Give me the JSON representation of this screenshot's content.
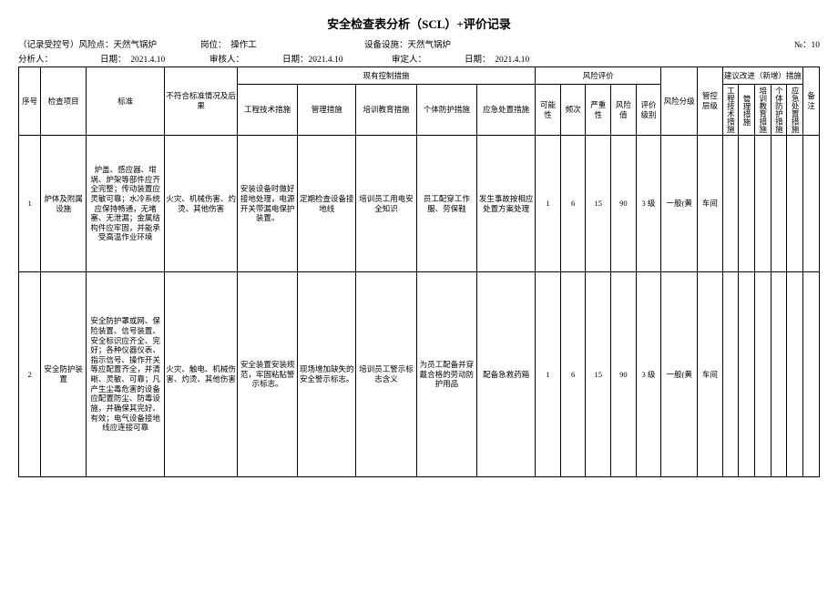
{
  "title": "安全检查表分析（SCL）+评价记录",
  "meta": {
    "record_no_label": "（记录受控号）风险点：",
    "record_no_value": "天然气锅炉",
    "post_label": "岗位：",
    "post_value": "操作工",
    "equip_label": "设备设施：",
    "equip_value": "天然气锅炉",
    "no_label": "№：",
    "no_value": "10",
    "analyst_label": "分析人：",
    "analyst_date_label": "日期：",
    "analyst_date": "2021.4.10",
    "reviewer_label": "审核人：",
    "reviewer_date_label": "日期：",
    "reviewer_date": "2021.4.10",
    "approver_label": "审定人：",
    "approver_date_label": "日期：",
    "approver_date": "2021.4.10"
  },
  "headers": {
    "seq": "序号",
    "item": "检查项目",
    "standard": "标准",
    "nonconf": "不符合标准情况及后果",
    "ctrl_group": "现有控制措施",
    "ctrl_eng": "工程技术措施",
    "ctrl_mgmt": "管理措施",
    "ctrl_train": "培训教育措施",
    "ctrl_ppe": "个体防护措施",
    "ctrl_emerg": "应急处置措施",
    "risk_group": "风险评价",
    "p": "可能性",
    "f": "频次",
    "s": "严重性",
    "v": "风险值",
    "lv": "评价级别",
    "rg": "风险分级",
    "cl": "管控层级",
    "sugg_group": "建议改进（新增）措施",
    "sugg_eng": "工程技术措施",
    "sugg_mgmt": "管理措施",
    "sugg_train": "培训教育措施",
    "sugg_ppe": "个体防护措施",
    "sugg_emerg": "应急处置措施",
    "note": "备注"
  },
  "rows": [
    {
      "seq": "1",
      "item": "炉体及附属设施",
      "standard": "炉盖、感应器、坩埚、炉架等部件应齐全完整；传动装置应灵敏可靠；水冷系统应保持畅通，无堵塞、无泄漏；金属结构件应牢固，并能承受高温作业环境",
      "nonconf": "火灾、机械伤害、灼烫、其他伤害",
      "ctrl_eng": "安装设备时做好接地处理，电源开关带漏电保护装置。",
      "ctrl_mgmt": "定期检查设备接地线",
      "ctrl_train": "培训员工用电安全知识",
      "ctrl_ppe": "员工配穿工作服、劳保鞋",
      "ctrl_emerg": "发生事故按相应处置方案处理",
      "p": "1",
      "f": "6",
      "s": "15",
      "v": "90",
      "lv": "3 级",
      "rg": "一般(黄",
      "cl": "车间",
      "s1": "",
      "s2": "",
      "s3": "",
      "s4": "",
      "s5": "",
      "note": ""
    },
    {
      "seq": "2",
      "item": "安全防护装置",
      "standard": "安全防护罩或网、保险装置、信号装置、安全标识应齐全、完好；各种仪器仪表、指示信号、操作开关等应配置齐全，并清晰、灵敏、可靠；凡产生尘毒危害的设备应配置防尘、防毒设施，并确保其完好、有效；电气设备接地线应连接可靠",
      "nonconf": "火灾、触电、机械伤害、灼烫、其他伤害",
      "ctrl_eng": "安全装置安装规范，牢固粘贴警示标志。",
      "ctrl_mgmt": "现场增加缺失的安全警示标志。",
      "ctrl_train": "培训员工警示标志含义",
      "ctrl_ppe": "为员工配备并穿戴合格的劳动防护用品",
      "ctrl_emerg": "配备急救药箱",
      "p": "1",
      "f": "6",
      "s": "15",
      "v": "90",
      "lv": "3 级",
      "rg": "一般(黄",
      "cl": "车间",
      "s1": "",
      "s2": "",
      "s3": "",
      "s4": "",
      "s5": "",
      "note": ""
    }
  ]
}
